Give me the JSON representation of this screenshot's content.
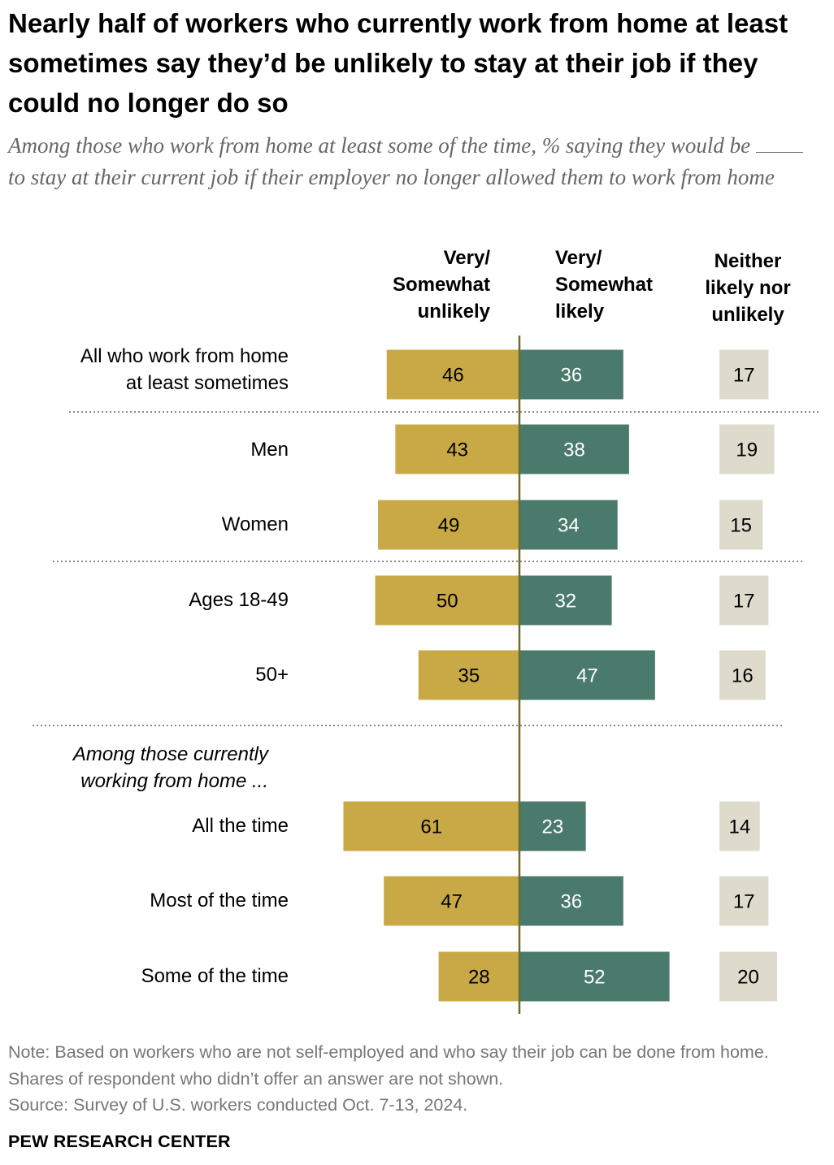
{
  "header": {
    "title": "Nearly half of workers who currently work from home at least sometimes say they’d be unlikely to stay at their job if they could no longer do so",
    "subtitle_before": "Among those who work from home at least some of the time, % saying they would be",
    "subtitle_after": "to stay at their current job if their employer no longer allowed them to work from home"
  },
  "column_headers": {
    "unlikely": [
      "Very/",
      "Somewhat",
      "unlikely"
    ],
    "likely": [
      "Very/",
      "Somewhat",
      "likely"
    ],
    "neither": [
      "Neither",
      "likely nor",
      "unlikely"
    ]
  },
  "group_label": [
    "Among those currently",
    "working from home ..."
  ],
  "chart_data": {
    "type": "bar",
    "categories": [
      [
        "All who work from home",
        "at least sometimes"
      ],
      [
        "Men"
      ],
      [
        "Women"
      ],
      [
        "Ages 18-49"
      ],
      [
        "50+"
      ],
      [
        "All the time"
      ],
      [
        "Most of the time"
      ],
      [
        "Some of the time"
      ]
    ],
    "series": [
      {
        "name": "Very/Somewhat unlikely",
        "values": [
          46,
          43,
          49,
          50,
          35,
          61,
          47,
          28
        ],
        "color": "#C9A945"
      },
      {
        "name": "Very/Somewhat likely",
        "values": [
          36,
          38,
          34,
          32,
          47,
          23,
          36,
          52
        ],
        "color": "#4A7A6B"
      },
      {
        "name": "Neither likely nor unlikely",
        "values": [
          17,
          19,
          15,
          17,
          16,
          14,
          17,
          20
        ],
        "color": "#DEDBCD"
      }
    ],
    "diverging_axis_color": "#6B6A32",
    "grid": false
  },
  "footer": {
    "note": "Note: Based on workers who are not self-employed and who say their job can be done from home. Shares of respondent who didn’t offer an answer are not shown.",
    "source": "Source: Survey of U.S. workers conducted Oct. 7-13, 2024.",
    "org": "PEW RESEARCH CENTER"
  }
}
